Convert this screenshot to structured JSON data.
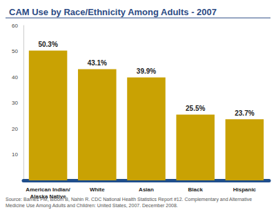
{
  "chart_data": {
    "type": "bar",
    "title": "CAM Use by Race/Ethnicity Among Adults - 2007",
    "categories": [
      "American Indian/Alaska Native",
      "White",
      "Asian",
      "Black",
      "Hispanic"
    ],
    "values": [
      50.3,
      43.1,
      39.9,
      25.5,
      23.7
    ],
    "value_labels": [
      "50.3%",
      "43.1%",
      "39.9%",
      "25.5%",
      "23.7%"
    ],
    "data_labels": true,
    "color": "#c9a203",
    "ylim": [
      0,
      60
    ],
    "yticks": [
      10,
      20,
      30,
      40,
      50,
      60
    ],
    "grid": false,
    "source": "Source: Barnes PM, Bloom B, Nahin R. CDC National Health Statistics Report #12. Complementary and Alternative Medicine Use Among Adults and Children: United States, 2007. December 2008."
  }
}
